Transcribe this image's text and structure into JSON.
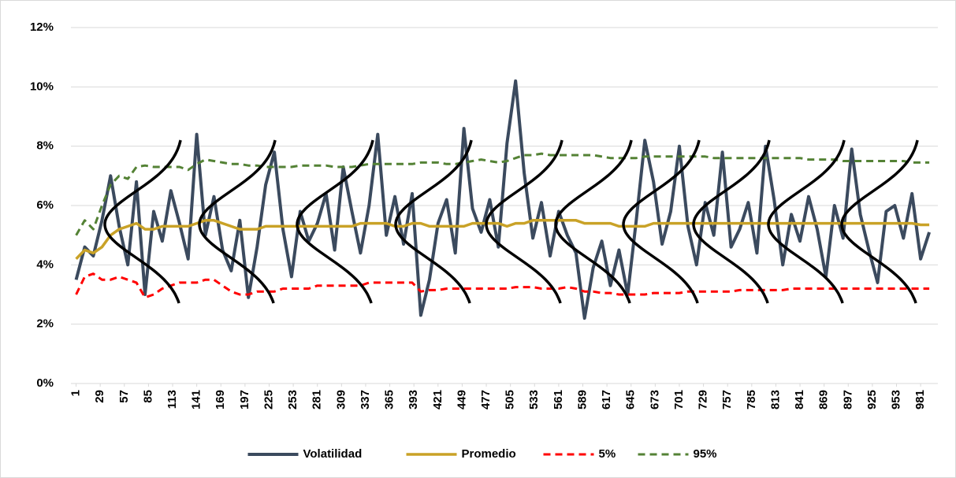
{
  "chart_data": {
    "type": "line",
    "x": [
      1,
      11,
      21,
      31,
      41,
      51,
      61,
      71,
      81,
      91,
      101,
      111,
      121,
      131,
      141,
      151,
      161,
      171,
      181,
      191,
      201,
      211,
      221,
      231,
      241,
      251,
      261,
      271,
      281,
      291,
      301,
      311,
      321,
      331,
      341,
      351,
      361,
      371,
      381,
      391,
      401,
      411,
      421,
      431,
      441,
      451,
      461,
      471,
      481,
      491,
      501,
      511,
      521,
      531,
      541,
      551,
      561,
      571,
      581,
      591,
      601,
      611,
      621,
      631,
      641,
      651,
      661,
      671,
      681,
      691,
      701,
      711,
      721,
      731,
      741,
      751,
      761,
      771,
      781,
      791,
      801,
      811,
      821,
      831,
      841,
      851,
      861,
      871,
      881,
      891,
      901,
      911,
      921,
      931,
      941,
      951,
      961,
      971,
      981,
      991
    ],
    "series": [
      {
        "name": "Volatilidad",
        "color": "#3b4a5e",
        "dash": false,
        "width": 4,
        "values": [
          3.5,
          4.6,
          4.3,
          5.5,
          7.0,
          5.3,
          4.0,
          6.8,
          3.0,
          5.8,
          4.8,
          6.5,
          5.4,
          4.2,
          8.4,
          5.0,
          6.3,
          4.5,
          3.8,
          5.5,
          2.9,
          4.6,
          6.7,
          7.8,
          5.2,
          3.6,
          5.8,
          4.8,
          5.4,
          6.4,
          4.5,
          7.3,
          5.8,
          4.4,
          6.0,
          8.4,
          5.0,
          6.3,
          4.7,
          6.4,
          2.3,
          3.5,
          5.4,
          6.2,
          4.4,
          8.6,
          5.9,
          5.1,
          6.2,
          4.6,
          8.1,
          10.2,
          7.1,
          4.9,
          6.1,
          4.3,
          5.8,
          5.0,
          4.4,
          2.2,
          3.9,
          4.8,
          3.3,
          4.5,
          3.0,
          5.5,
          8.2,
          6.8,
          4.7,
          5.8,
          8.0,
          5.3,
          4.0,
          6.1,
          5.0,
          7.8,
          4.6,
          5.2,
          6.1,
          4.4,
          8.0,
          6.2,
          4.0,
          5.7,
          4.8,
          6.3,
          5.2,
          3.6,
          6.0,
          4.9,
          7.9,
          5.7,
          4.5,
          3.4,
          5.8,
          6.0,
          4.9,
          6.4,
          4.2,
          5.1
        ]
      },
      {
        "name": "Promedio",
        "color": "#c9a227",
        "dash": false,
        "width": 3.5,
        "values": [
          4.2,
          4.5,
          4.4,
          4.6,
          5.0,
          5.2,
          5.3,
          5.4,
          5.2,
          5.2,
          5.3,
          5.3,
          5.3,
          5.3,
          5.4,
          5.5,
          5.5,
          5.4,
          5.3,
          5.2,
          5.2,
          5.2,
          5.3,
          5.3,
          5.3,
          5.3,
          5.3,
          5.3,
          5.3,
          5.3,
          5.3,
          5.3,
          5.3,
          5.4,
          5.4,
          5.4,
          5.4,
          5.3,
          5.3,
          5.4,
          5.4,
          5.3,
          5.3,
          5.3,
          5.3,
          5.3,
          5.4,
          5.4,
          5.4,
          5.4,
          5.3,
          5.4,
          5.4,
          5.5,
          5.5,
          5.5,
          5.5,
          5.5,
          5.5,
          5.4,
          5.4,
          5.4,
          5.4,
          5.3,
          5.3,
          5.3,
          5.3,
          5.4,
          5.4,
          5.4,
          5.4,
          5.4,
          5.4,
          5.4,
          5.4,
          5.4,
          5.4,
          5.4,
          5.4,
          5.4,
          5.4,
          5.4,
          5.4,
          5.4,
          5.4,
          5.4,
          5.4,
          5.4,
          5.4,
          5.4,
          5.4,
          5.4,
          5.4,
          5.4,
          5.4,
          5.4,
          5.4,
          5.4,
          5.35,
          5.35
        ]
      },
      {
        "name": "5%",
        "color": "#ff0000",
        "dash": true,
        "width": 3,
        "values": [
          3.0,
          3.6,
          3.7,
          3.5,
          3.5,
          3.6,
          3.5,
          3.4,
          2.9,
          3.0,
          3.2,
          3.3,
          3.4,
          3.4,
          3.4,
          3.5,
          3.5,
          3.3,
          3.1,
          3.0,
          3.0,
          3.1,
          3.1,
          3.1,
          3.2,
          3.2,
          3.2,
          3.2,
          3.3,
          3.3,
          3.3,
          3.3,
          3.3,
          3.3,
          3.4,
          3.4,
          3.4,
          3.4,
          3.4,
          3.4,
          3.1,
          3.15,
          3.15,
          3.2,
          3.2,
          3.2,
          3.2,
          3.2,
          3.2,
          3.2,
          3.2,
          3.25,
          3.25,
          3.25,
          3.2,
          3.2,
          3.2,
          3.25,
          3.2,
          3.1,
          3.1,
          3.05,
          3.05,
          3.0,
          3.0,
          3.0,
          3.0,
          3.05,
          3.05,
          3.05,
          3.05,
          3.1,
          3.1,
          3.1,
          3.1,
          3.1,
          3.1,
          3.15,
          3.15,
          3.15,
          3.15,
          3.15,
          3.15,
          3.2,
          3.2,
          3.2,
          3.2,
          3.2,
          3.2,
          3.2,
          3.2,
          3.2,
          3.2,
          3.2,
          3.2,
          3.2,
          3.2,
          3.2,
          3.2,
          3.2
        ]
      },
      {
        "name": "95%",
        "color": "#548235",
        "dash": true,
        "width": 3,
        "values": [
          5.0,
          5.5,
          5.2,
          6.0,
          6.7,
          7.0,
          6.9,
          7.3,
          7.35,
          7.3,
          7.3,
          7.3,
          7.3,
          7.2,
          7.4,
          7.55,
          7.5,
          7.45,
          7.4,
          7.4,
          7.35,
          7.35,
          7.3,
          7.3,
          7.3,
          7.3,
          7.35,
          7.35,
          7.35,
          7.35,
          7.3,
          7.3,
          7.3,
          7.35,
          7.4,
          7.4,
          7.4,
          7.4,
          7.4,
          7.4,
          7.45,
          7.45,
          7.45,
          7.4,
          7.4,
          7.45,
          7.5,
          7.55,
          7.5,
          7.45,
          7.5,
          7.6,
          7.7,
          7.7,
          7.75,
          7.7,
          7.7,
          7.7,
          7.7,
          7.7,
          7.7,
          7.65,
          7.6,
          7.6,
          7.6,
          7.6,
          7.65,
          7.65,
          7.65,
          7.65,
          7.65,
          7.65,
          7.65,
          7.65,
          7.6,
          7.6,
          7.6,
          7.6,
          7.6,
          7.6,
          7.6,
          7.6,
          7.6,
          7.6,
          7.6,
          7.55,
          7.55,
          7.55,
          7.55,
          7.5,
          7.5,
          7.5,
          7.5,
          7.5,
          7.5,
          7.5,
          7.5,
          7.45,
          7.45,
          7.45
        ]
      }
    ],
    "xlim": [
      -5,
      1001
    ],
    "xticks": [
      1,
      29,
      57,
      85,
      113,
      141,
      169,
      197,
      225,
      253,
      281,
      309,
      337,
      365,
      393,
      421,
      449,
      477,
      505,
      533,
      561,
      589,
      617,
      645,
      673,
      701,
      729,
      757,
      785,
      813,
      841,
      869,
      897,
      925,
      953,
      981
    ],
    "ylim": [
      0,
      12
    ],
    "yticks": [
      {
        "value": 0,
        "label": "0%"
      },
      {
        "value": 2,
        "label": "2%"
      },
      {
        "value": 4,
        "label": "4%"
      },
      {
        "value": 6,
        "label": "6%"
      },
      {
        "value": 8,
        "label": "8%"
      },
      {
        "value": 10,
        "label": "10%"
      },
      {
        "value": 12,
        "label": "12%"
      }
    ],
    "grid": true,
    "legend": "bottom"
  }
}
